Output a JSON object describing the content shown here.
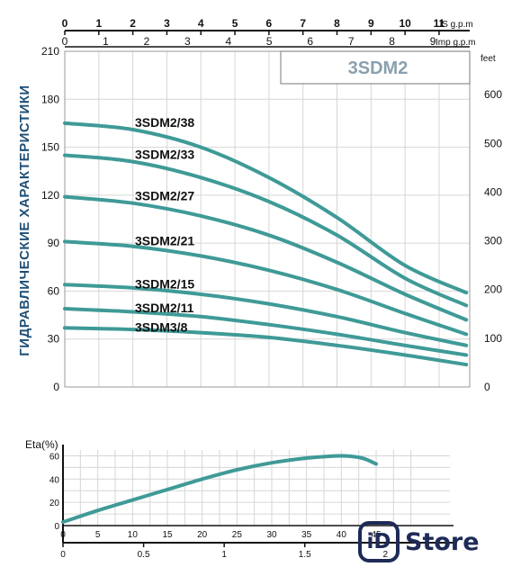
{
  "chart_data": [
    {
      "type": "line",
      "title": "3SDM2",
      "ylabel": "ГИДРАВЛИЧЕСКИЕ ХАРАКТЕРИСТИКИ",
      "x_top_us": {
        "unit_label": "US g.p.m",
        "ticks": [
          0,
          1,
          2,
          3,
          4,
          5,
          6,
          7,
          8,
          9,
          10,
          11
        ],
        "xlim": [
          0,
          11.9
        ]
      },
      "x_top_imp": {
        "unit_label": "Imp g.p.m",
        "ticks": [
          0,
          1,
          2,
          3,
          4,
          5,
          6,
          7,
          8,
          9
        ],
        "xlim": [
          0,
          9.9
        ]
      },
      "y_left": {
        "ticks": [
          0,
          30,
          60,
          90,
          120,
          150,
          180,
          210
        ],
        "ylim": [
          0,
          210
        ]
      },
      "y_right": {
        "unit_label": "feet",
        "ticks": [
          0,
          100,
          200,
          300,
          400,
          500,
          600
        ],
        "ylim": [
          0,
          689
        ]
      },
      "grid": true,
      "series": [
        {
          "name": "3SDM2/38",
          "x": [
            0,
            2,
            4,
            6,
            8,
            10,
            11.8
          ],
          "y": [
            165,
            161,
            150,
            131,
            106,
            76,
            59
          ]
        },
        {
          "name": "3SDM2/33",
          "x": [
            0,
            2,
            4,
            6,
            8,
            10,
            11.8
          ],
          "y": [
            145,
            141,
            131,
            116,
            95,
            68,
            51
          ]
        },
        {
          "name": "3SDM2/27",
          "x": [
            0,
            2,
            4,
            6,
            8,
            10,
            11.8
          ],
          "y": [
            119,
            115,
            107,
            95,
            78,
            58,
            42
          ]
        },
        {
          "name": "3SDM2/21",
          "x": [
            0,
            2,
            4,
            6,
            8,
            10,
            11.8
          ],
          "y": [
            91,
            88,
            82,
            73,
            61,
            46,
            33
          ]
        },
        {
          "name": "3SDM2/15",
          "x": [
            0,
            2,
            4,
            6,
            8,
            10,
            11.8
          ],
          "y": [
            64,
            62,
            58,
            52,
            44,
            34,
            26
          ]
        },
        {
          "name": "3SDM2/11",
          "x": [
            0,
            2,
            4,
            6,
            8,
            10,
            11.8
          ],
          "y": [
            49,
            47,
            44,
            39,
            33,
            26,
            20
          ]
        },
        {
          "name": "3SDM3/8",
          "x": [
            0,
            2,
            4,
            6,
            8,
            10,
            11.8
          ],
          "y": [
            37,
            36,
            34,
            31,
            26,
            20,
            14
          ]
        }
      ]
    },
    {
      "type": "line",
      "ylabel": "Eta(%)",
      "x_us": {
        "ticks": [
          0,
          5,
          10,
          15,
          20,
          25,
          30,
          35,
          40,
          45
        ],
        "xlim": [
          0,
          45
        ]
      },
      "x_m3h": {
        "ticks": [
          "0",
          "0.5",
          "1",
          "1.5",
          "2"
        ],
        "values": [
          0,
          0.5,
          1,
          1.5,
          2
        ],
        "xlim": [
          0,
          2.4
        ]
      },
      "y": {
        "ticks": [
          0,
          20,
          40,
          60
        ],
        "ylim": [
          0,
          65
        ]
      },
      "grid": true,
      "series": [
        {
          "name": "",
          "x": [
            0,
            5,
            10,
            15,
            20,
            25,
            30,
            35,
            40,
            43,
            45
          ],
          "y": [
            3,
            13,
            22,
            31,
            40,
            48,
            54,
            58,
            60,
            58,
            53
          ]
        }
      ]
    }
  ],
  "logo": {
    "mark": "iD",
    "word": "Store"
  }
}
